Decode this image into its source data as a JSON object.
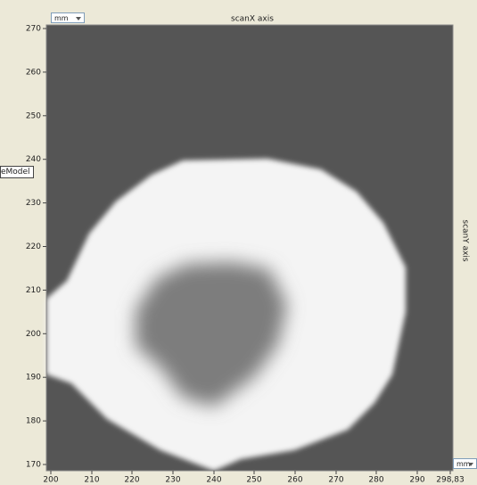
{
  "x_axis": {
    "title": "scanX axis",
    "unit": "mm",
    "ticks": [
      "200",
      "210",
      "220",
      "230",
      "240",
      "250",
      "260",
      "270",
      "280",
      "290",
      "298,83"
    ]
  },
  "y_axis": {
    "title": "scanY axis",
    "unit": "mm",
    "ticks": [
      "270",
      "260",
      "250",
      "240",
      "230",
      "220",
      "210",
      "200",
      "190",
      "180",
      "170"
    ]
  },
  "side_label": "eModel"
}
